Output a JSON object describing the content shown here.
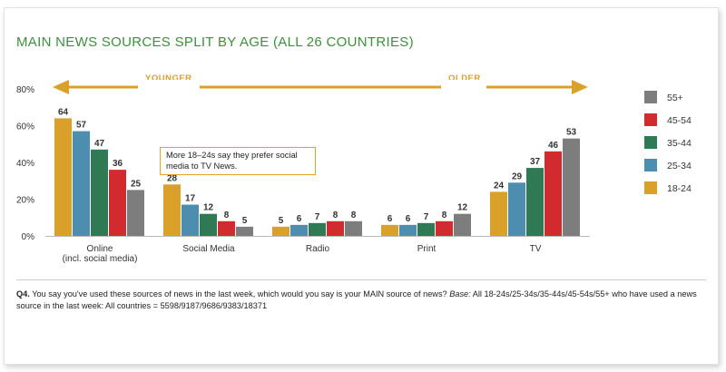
{
  "title": "MAIN NEWS SOURCES SPLIT BY AGE (ALL 26 COUNTRIES)",
  "arrows": {
    "left_label": "YOUNGER",
    "right_label": "OLDER"
  },
  "callout": "More 18–24s say they prefer social media to TV News.",
  "footnote": {
    "question_id": "Q4.",
    "question": " You say you've used these sources of news in the last week, which would you say is your MAIN source of news? ",
    "base_label": "Base:",
    "base_text": " All 18-24s/25-34s/35-44s/45-54s/55+ who have used a news source in the last week: All countries = 5598/9187/9686/9383/18371"
  },
  "chart_data": {
    "type": "bar",
    "title": "MAIN NEWS SOURCES SPLIT BY AGE (ALL 26 COUNTRIES)",
    "categories": [
      "Online\n(incl. social media)",
      "Social Media",
      "Radio",
      "Print",
      "TV"
    ],
    "series": [
      {
        "name": "18-24",
        "color": "#d9a12a",
        "values": [
          64,
          28,
          5,
          6,
          24
        ]
      },
      {
        "name": "25-34",
        "color": "#4c8db0",
        "values": [
          57,
          17,
          6,
          6,
          29
        ]
      },
      {
        "name": "35-44",
        "color": "#2f7a55",
        "values": [
          47,
          12,
          7,
          7,
          37
        ]
      },
      {
        "name": "45-54",
        "color": "#d12a2f",
        "values": [
          36,
          8,
          8,
          8,
          46
        ]
      },
      {
        "name": "55+",
        "color": "#7d7d7d",
        "values": [
          25,
          5,
          8,
          12,
          53
        ]
      }
    ],
    "y_ticks": [
      "0%",
      "20%",
      "40%",
      "60%",
      "80%"
    ],
    "ylim": [
      0,
      80
    ],
    "legend_order": [
      "55+",
      "45-54",
      "35-44",
      "25-34",
      "18-24"
    ],
    "legend_position": "right"
  }
}
